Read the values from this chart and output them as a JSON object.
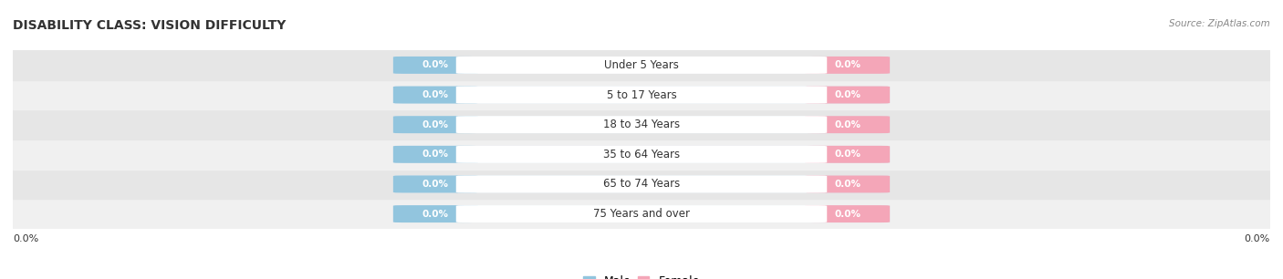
{
  "title": "DISABILITY CLASS: VISION DIFFICULTY",
  "source_text": "Source: ZipAtlas.com",
  "categories": [
    "Under 5 Years",
    "5 to 17 Years",
    "18 to 34 Years",
    "35 to 64 Years",
    "65 to 74 Years",
    "75 Years and over"
  ],
  "male_values": [
    0.0,
    0.0,
    0.0,
    0.0,
    0.0,
    0.0
  ],
  "female_values": [
    0.0,
    0.0,
    0.0,
    0.0,
    0.0,
    0.0
  ],
  "male_color": "#92c5de",
  "female_color": "#f4a6b8",
  "row_colors": [
    "#f0f0f0",
    "#e6e6e6"
  ],
  "track_color": "#dce8f0",
  "center_color": "#ffffff",
  "title_color": "#333333",
  "label_color": "#333333",
  "source_color": "#888888",
  "fig_width": 14.06,
  "fig_height": 3.06,
  "dpi": 100
}
